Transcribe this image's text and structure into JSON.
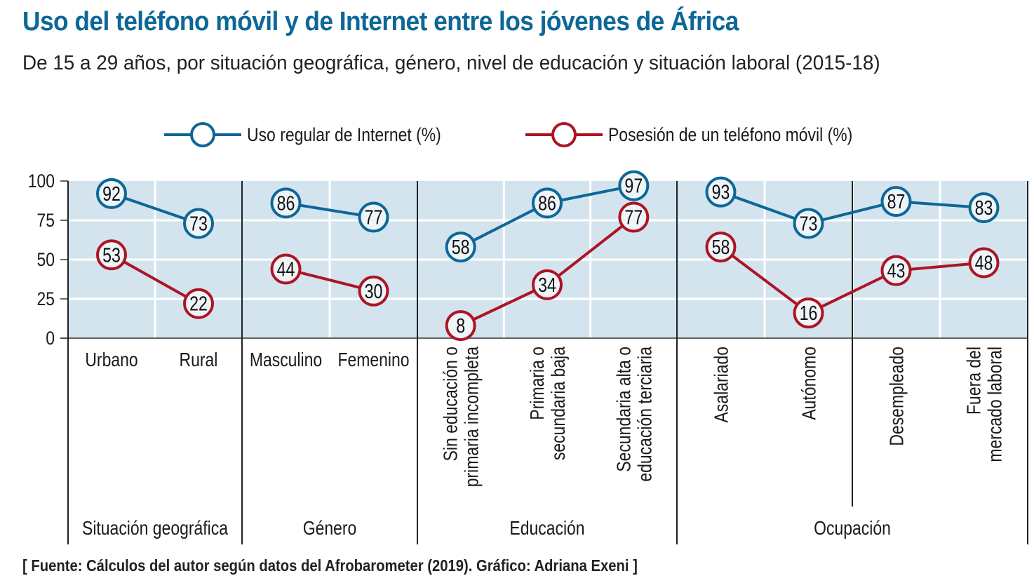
{
  "title": "Uso del teléfono móvil y de Internet entre los jóvenes de África",
  "subtitle": "De 15 a 29 años, por situación geográfica, género, nivel de educación y situación laboral (2015-18)",
  "source": "[ Fuente: Cálculos del autor según datos del Afrobarometer (2019). Gráfico: Adriana Exeni ]",
  "colors": {
    "internet": "#0d6797",
    "phone": "#ad1424",
    "plot_bg": "#d3e4ee",
    "marker_fill": "#eef4f8",
    "title": "#0d6797"
  },
  "chart_data": {
    "type": "line",
    "title": "Uso del teléfono móvil y de Internet entre los jóvenes de África",
    "subtitle": "De 15 a 29 años, por situación geográfica, género, nivel de educación y situación laboral (2015-18)",
    "xlabel": "",
    "ylabel": "",
    "ylim": [
      0,
      100
    ],
    "yticks": [
      0,
      25,
      50,
      75,
      100
    ],
    "grid": true,
    "legend_position": "top",
    "legend": [
      {
        "key": "internet",
        "label": "Uso regular de Internet (%)"
      },
      {
        "key": "phone",
        "label": "Posesión de un teléfono móvil (%)"
      }
    ],
    "groups": [
      {
        "name": "Situación geográfica",
        "categories": [
          {
            "label": [
              "Urbano"
            ],
            "rotated": false
          },
          {
            "label": [
              "Rural"
            ],
            "rotated": false
          }
        ],
        "series": [
          {
            "key": "internet",
            "name": "Uso regular de Internet (%)",
            "values": [
              92,
              73
            ]
          },
          {
            "key": "phone",
            "name": "Posesión de un teléfono móvil (%)",
            "values": [
              53,
              22
            ]
          }
        ]
      },
      {
        "name": "Género",
        "categories": [
          {
            "label": [
              "Masculino"
            ],
            "rotated": false
          },
          {
            "label": [
              "Femenino"
            ],
            "rotated": false
          }
        ],
        "series": [
          {
            "key": "internet",
            "name": "Uso regular de Internet (%)",
            "values": [
              86,
              77
            ]
          },
          {
            "key": "phone",
            "name": "Posesión de un teléfono móvil (%)",
            "values": [
              44,
              30
            ]
          }
        ]
      },
      {
        "name": "Educación",
        "categories": [
          {
            "label": [
              "Sin educación o",
              "primaria incompleta"
            ],
            "rotated": true
          },
          {
            "label": [
              "Primaria o",
              "secundaria baja"
            ],
            "rotated": true
          },
          {
            "label": [
              "Secundaria alta o",
              "educación terciaria"
            ],
            "rotated": true
          }
        ],
        "series": [
          {
            "key": "internet",
            "name": "Uso regular de Internet (%)",
            "values": [
              58,
              86,
              97
            ]
          },
          {
            "key": "phone",
            "name": "Posesión de un teléfono móvil (%)",
            "values": [
              8,
              34,
              77
            ]
          }
        ]
      },
      {
        "name": "Ocupación",
        "categories": [
          {
            "label": [
              "Asalariado"
            ],
            "rotated": true
          },
          {
            "label": [
              "Autónomo"
            ],
            "rotated": true
          },
          {
            "label": [
              "Desempleado"
            ],
            "rotated": true
          },
          {
            "label": [
              "Fuera del",
              "mercado laboral"
            ],
            "rotated": true
          }
        ],
        "series": [
          {
            "key": "internet",
            "name": "Uso regular de Internet (%)",
            "values": [
              93,
              73,
              87,
              83
            ]
          },
          {
            "key": "phone",
            "name": "Posesión de un teléfono móvil (%)",
            "values": [
              58,
              16,
              43,
              48
            ]
          }
        ]
      }
    ]
  }
}
